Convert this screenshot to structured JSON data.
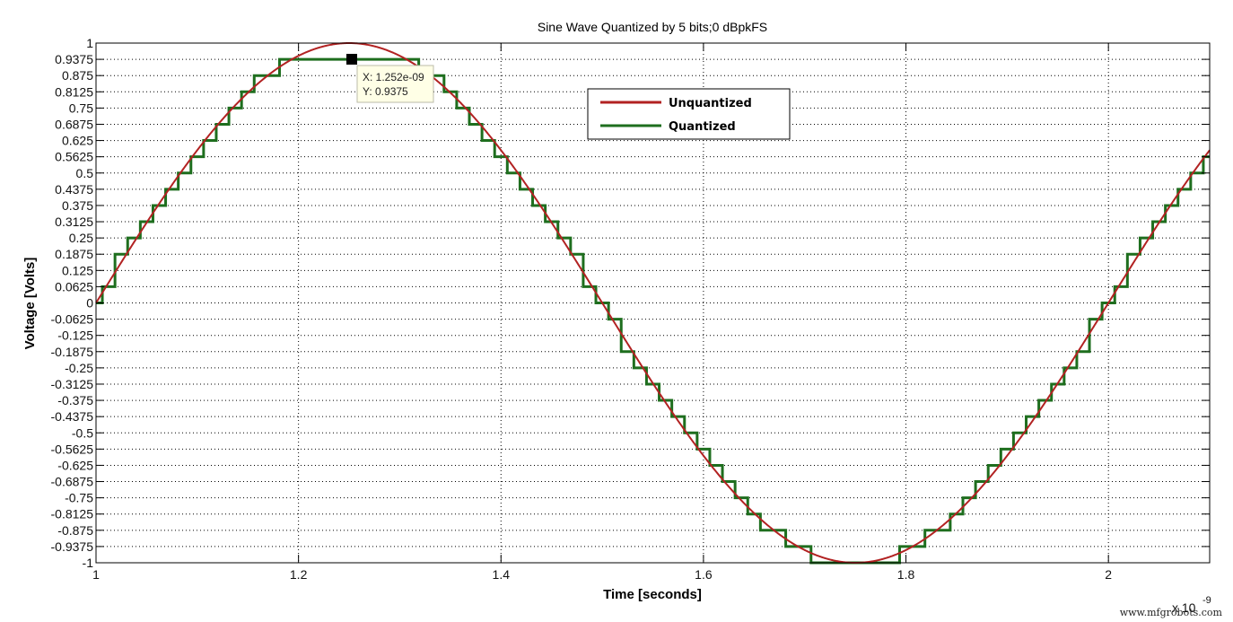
{
  "chart_data": {
    "type": "line",
    "title": "Sine Wave Quantized by 5 bits;0 dBpkFS",
    "xlabel": "Time [seconds]",
    "ylabel": "Voltage [Volts]",
    "x_exponent_label": "x 10",
    "x_exponent_power": "-9",
    "xlim": [
      1.0,
      2.1
    ],
    "ylim": [
      -1,
      1
    ],
    "x_scale": 1e-09,
    "x_ticks": [
      1,
      1.2,
      1.4,
      1.6,
      1.8,
      2
    ],
    "x_tick_labels": [
      "1",
      "1.2",
      "1.4",
      "1.6",
      "1.8",
      "2"
    ],
    "y_ticks": [
      1,
      0.9375,
      0.875,
      0.8125,
      0.75,
      0.6875,
      0.625,
      0.5625,
      0.5,
      0.4375,
      0.375,
      0.3125,
      0.25,
      0.1875,
      0.125,
      0.0625,
      0,
      -0.0625,
      -0.125,
      -0.1875,
      -0.25,
      -0.3125,
      -0.375,
      -0.4375,
      -0.5,
      -0.5625,
      -0.625,
      -0.6875,
      -0.75,
      -0.8125,
      -0.875,
      -0.9375,
      -1
    ],
    "y_tick_labels": [
      "1",
      "0.9375",
      "0.875",
      "0.8125",
      "0.75",
      "0.6875",
      "0.625",
      "0.5625",
      "0.5",
      "0.4375",
      "0.375",
      "0.3125",
      "0.25",
      "0.1875",
      "0.125",
      "0.0625",
      "0",
      "-0.0625",
      "-0.125",
      "-0.1875",
      "-0.25",
      "-0.3125",
      "-0.375",
      "-0.4375",
      "-0.5",
      "-0.5625",
      "-0.625",
      "-0.6875",
      "-0.75",
      "-0.8125",
      "-0.875",
      "-0.9375",
      "-1"
    ],
    "grid": true,
    "legend_position": "upper center",
    "series": [
      {
        "name": "Unquantized",
        "color": "#b22222",
        "description": "sine, amplitude 1 V, period 1e-9 s, zero crossing at 1e-9 s",
        "x": [
          1.0,
          1.05,
          1.1,
          1.15,
          1.2,
          1.25,
          1.3,
          1.35,
          1.4,
          1.45,
          1.5,
          1.55,
          1.6,
          1.65,
          1.7,
          1.75,
          1.8,
          1.85,
          1.9,
          1.95,
          2.0,
          2.05,
          2.1
        ],
        "values": [
          0,
          0.309,
          0.588,
          0.809,
          0.951,
          1.0,
          0.951,
          0.809,
          0.588,
          0.309,
          0,
          -0.309,
          -0.588,
          -0.809,
          -0.951,
          -1.0,
          -0.951,
          -0.809,
          -0.588,
          -0.309,
          0,
          0.309,
          0.588
        ]
      },
      {
        "name": "Quantized",
        "color": "#1e6e1e",
        "description": "5-bit quantized (step 0.0625 V), clipped to [-1, 0.9375]",
        "x": [
          1.0,
          1.05,
          1.1,
          1.15,
          1.2,
          1.25,
          1.3,
          1.35,
          1.4,
          1.45,
          1.5,
          1.55,
          1.6,
          1.65,
          1.7,
          1.75,
          1.8,
          1.85,
          1.9,
          1.95,
          2.0,
          2.05,
          2.1
        ],
        "values": [
          0,
          0.3125,
          0.5625,
          0.8125,
          0.9375,
          0.9375,
          0.9375,
          0.8125,
          0.5625,
          0.3125,
          0,
          -0.3125,
          -0.5625,
          -0.8125,
          -0.9375,
          -1.0,
          -0.9375,
          -0.8125,
          -0.5625,
          -0.3125,
          0,
          0.3125,
          0.5625
        ]
      }
    ],
    "annotations": [
      {
        "type": "datatip",
        "x_text": "X: 1.252e-09",
        "y_text": "Y: 0.9375",
        "x": 1.252,
        "y": 0.9375
      }
    ]
  },
  "legend": {
    "items": [
      {
        "label": "Unquantized",
        "color": "#b22222"
      },
      {
        "label": "Quantized",
        "color": "#1e6e1e"
      }
    ]
  },
  "datatip": {
    "x_text": "X: 1.252e-09",
    "y_text": "Y: 0.9375"
  },
  "watermark": "www.mfgrobots.com"
}
